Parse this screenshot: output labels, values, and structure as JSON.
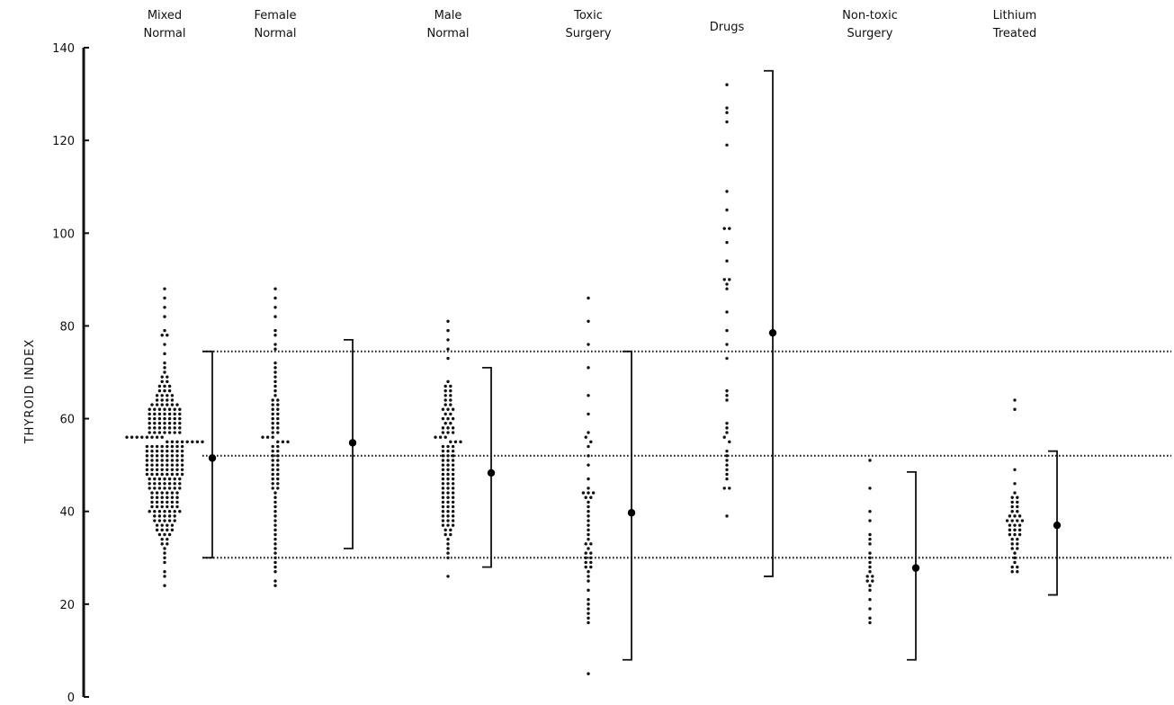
{
  "chart_data": {
    "type": "scatter",
    "title": "",
    "xlabel": "",
    "ylabel": "THYROID INDEX",
    "ylim": [
      0,
      140
    ],
    "yticks": [
      0,
      20,
      40,
      60,
      80,
      100,
      120,
      140
    ],
    "reference_lines": [
      {
        "y": 74.5,
        "style": "dotted"
      },
      {
        "y": 52.0,
        "style": "dotted"
      },
      {
        "y": 30.0,
        "style": "dotted"
      }
    ],
    "groups": [
      {
        "label_lines": [
          "Mixed",
          "Normal"
        ],
        "mean": 51.5,
        "range": [
          30,
          74.5
        ],
        "values": [
          88,
          86,
          84,
          82,
          79,
          78,
          78,
          76,
          74,
          72,
          71,
          70,
          69,
          69,
          68,
          68,
          67,
          67,
          67,
          66,
          66,
          66,
          65,
          65,
          65,
          65,
          64,
          64,
          64,
          64,
          63,
          63,
          63,
          63,
          63,
          63,
          62,
          62,
          62,
          62,
          62,
          62,
          62,
          61,
          61,
          61,
          61,
          61,
          61,
          61,
          60,
          60,
          60,
          60,
          60,
          60,
          60,
          59,
          59,
          59,
          59,
          59,
          59,
          59,
          58,
          58,
          58,
          58,
          58,
          58,
          58,
          57,
          57,
          57,
          57,
          57,
          57,
          57,
          56,
          56,
          56,
          56,
          56,
          56,
          56,
          56,
          55,
          55,
          55,
          55,
          55,
          55,
          55,
          55,
          54,
          54,
          54,
          54,
          54,
          54,
          54,
          54,
          53,
          53,
          53,
          53,
          53,
          53,
          53,
          53,
          52,
          52,
          52,
          52,
          52,
          52,
          52,
          52,
          51,
          51,
          51,
          51,
          51,
          51,
          51,
          51,
          50,
          50,
          50,
          50,
          50,
          50,
          50,
          50,
          49,
          49,
          49,
          49,
          49,
          49,
          49,
          49,
          48,
          48,
          48,
          48,
          48,
          48,
          48,
          48,
          47,
          47,
          47,
          47,
          47,
          47,
          47,
          46,
          46,
          46,
          46,
          46,
          46,
          46,
          45,
          45,
          45,
          45,
          45,
          45,
          45,
          44,
          44,
          44,
          44,
          44,
          44,
          43,
          43,
          43,
          43,
          43,
          43,
          42,
          42,
          42,
          42,
          42,
          42,
          41,
          41,
          41,
          41,
          41,
          41,
          40,
          40,
          40,
          40,
          40,
          40,
          40,
          39,
          39,
          39,
          39,
          39,
          38,
          38,
          38,
          38,
          38,
          37,
          37,
          37,
          37,
          36,
          36,
          36,
          36,
          35,
          35,
          35,
          34,
          34,
          33,
          33,
          32,
          31,
          30,
          29,
          27,
          26,
          24
        ]
      },
      {
        "label_lines": [
          "Female",
          "Normal"
        ],
        "mean": 54.8,
        "range": [
          32,
          77
        ],
        "values": [
          88,
          86,
          84,
          82,
          79,
          78,
          76,
          75,
          72,
          71,
          70,
          69,
          68,
          67,
          66,
          65,
          64,
          64,
          63,
          63,
          62,
          62,
          61,
          61,
          60,
          60,
          59,
          59,
          58,
          58,
          57,
          57,
          56,
          56,
          56,
          55,
          55,
          55,
          54,
          54,
          53,
          53,
          52,
          52,
          51,
          51,
          50,
          50,
          49,
          49,
          48,
          48,
          47,
          47,
          46,
          46,
          45,
          45,
          44,
          43,
          42,
          41,
          40,
          39,
          38,
          37,
          36,
          35,
          34,
          33,
          32,
          31,
          30,
          29,
          28,
          27,
          25,
          24
        ]
      },
      {
        "label_lines": [
          "Male",
          "Normal"
        ],
        "mean": 48.3,
        "range": [
          28,
          71
        ],
        "values": [
          81,
          79,
          77,
          75,
          73,
          68,
          67,
          67,
          66,
          66,
          65,
          65,
          64,
          64,
          63,
          63,
          62,
          62,
          62,
          61,
          61,
          60,
          60,
          60,
          59,
          59,
          58,
          58,
          58,
          57,
          57,
          57,
          56,
          56,
          56,
          55,
          55,
          55,
          54,
          54,
          54,
          53,
          53,
          53,
          52,
          52,
          52,
          51,
          51,
          51,
          50,
          50,
          50,
          49,
          49,
          49,
          48,
          48,
          48,
          47,
          47,
          47,
          46,
          46,
          46,
          45,
          45,
          45,
          44,
          44,
          44,
          43,
          43,
          43,
          42,
          42,
          42,
          41,
          41,
          41,
          40,
          40,
          40,
          39,
          39,
          39,
          38,
          38,
          38,
          37,
          37,
          37,
          36,
          36,
          35,
          35,
          34,
          33,
          32,
          31,
          30,
          26
        ]
      },
      {
        "label_lines": [
          "Toxic",
          "Surgery"
        ],
        "mean": 39.7,
        "range": [
          8,
          74.5
        ],
        "values": [
          86,
          81,
          76,
          71,
          65,
          61,
          57,
          56,
          55,
          54,
          52,
          50,
          47,
          45,
          44,
          44,
          44,
          43,
          43,
          42,
          41,
          40,
          39,
          38,
          37,
          36,
          35,
          34,
          33,
          33,
          32,
          31,
          31,
          30,
          30,
          29,
          29,
          28,
          28,
          27,
          26,
          25,
          23,
          21,
          20,
          19,
          18,
          17,
          16,
          5
        ]
      },
      {
        "label_lines": [
          "Drugs"
        ],
        "mean": 78.5,
        "range": [
          26,
          135
        ],
        "values": [
          132,
          127,
          126,
          124,
          119,
          109,
          105,
          101,
          101,
          98,
          94,
          90,
          90,
          89,
          88,
          83,
          79,
          76,
          73,
          66,
          65,
          64,
          59,
          58,
          57,
          56,
          55,
          53,
          52,
          51,
          50,
          49,
          48,
          47,
          45,
          45,
          39
        ]
      },
      {
        "label_lines": [
          "Non-toxic",
          "Surgery"
        ],
        "mean": 27.8,
        "range": [
          8,
          48.5
        ],
        "values": [
          51,
          45,
          40,
          38,
          35,
          34,
          33,
          31,
          30,
          29,
          28,
          27,
          26,
          26,
          25,
          25,
          24,
          23,
          21,
          19,
          17,
          16
        ]
      },
      {
        "label_lines": [
          "Lithium",
          "Treated"
        ],
        "mean": 37.0,
        "range": [
          22,
          53
        ],
        "values": [
          64,
          62,
          49,
          46,
          44,
          43,
          43,
          42,
          42,
          41,
          41,
          40,
          40,
          39,
          39,
          39,
          38,
          38,
          38,
          38,
          37,
          37,
          37,
          36,
          36,
          36,
          35,
          35,
          35,
          34,
          34,
          33,
          33,
          32,
          32,
          31,
          30,
          29,
          28,
          28,
          27,
          27
        ]
      }
    ]
  }
}
